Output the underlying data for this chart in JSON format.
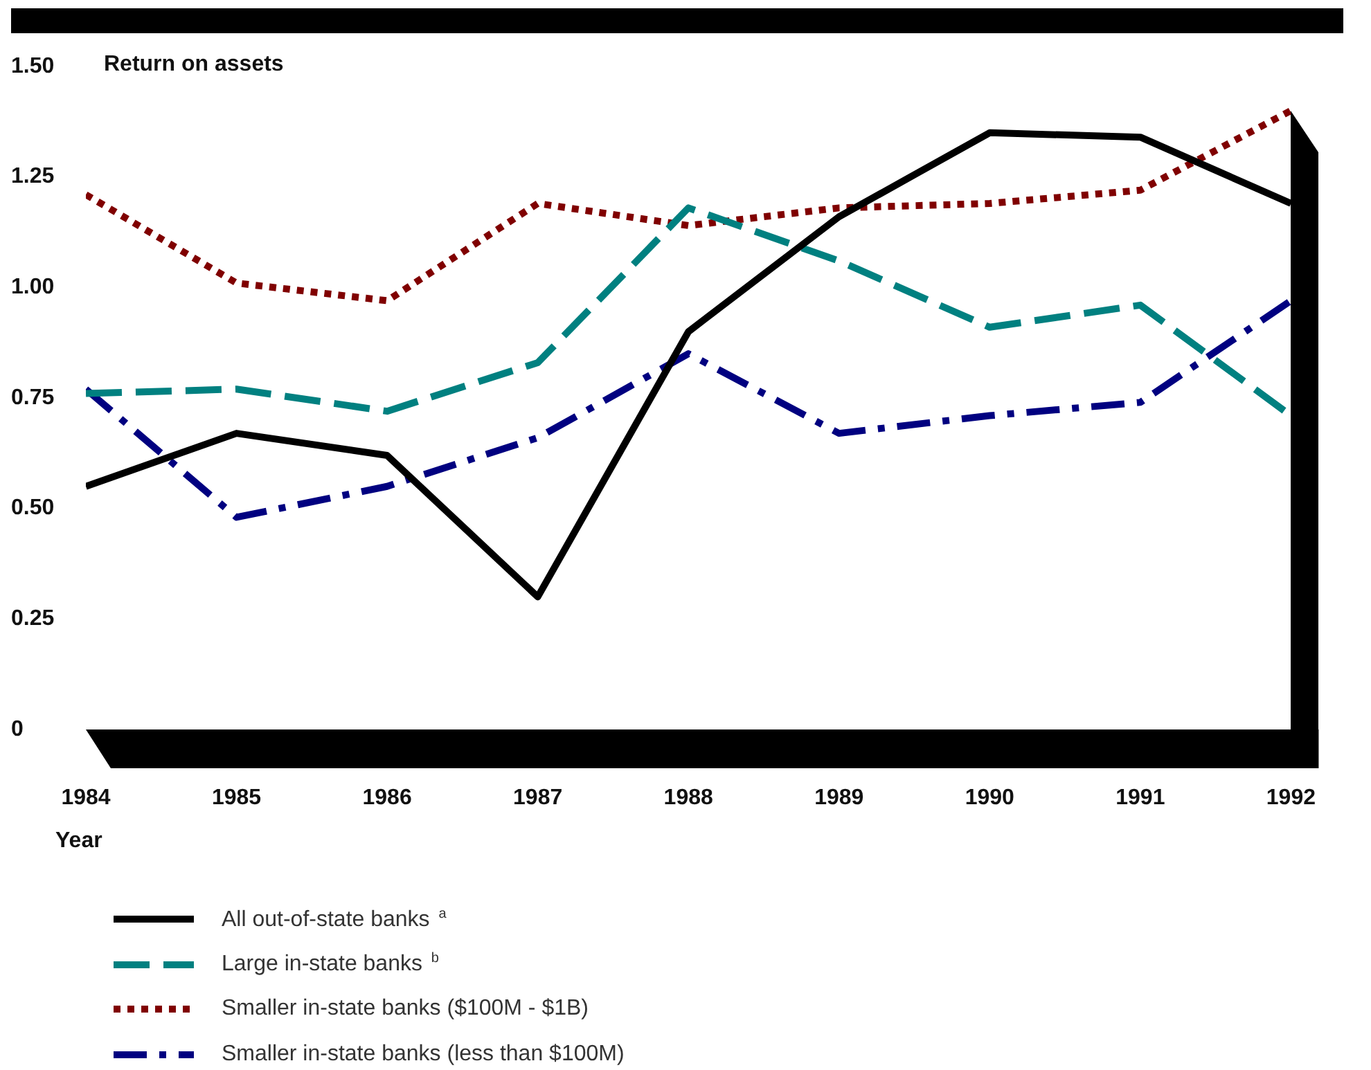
{
  "chart_data": {
    "type": "line",
    "ylabel": "Return on assets",
    "xlabel": "Year",
    "x": [
      1984,
      1985,
      1986,
      1987,
      1988,
      1989,
      1990,
      1991,
      1992
    ],
    "xlim": [
      1984,
      1992
    ],
    "xticks": [
      1984,
      1985,
      1986,
      1987,
      1988,
      1989,
      1990,
      1991,
      1992
    ],
    "ylim": [
      0,
      1.5
    ],
    "yticks": [
      0,
      0.25,
      {
        "value": 0.5,
        "label": "0.50"
      },
      0.75,
      {
        "value": 1,
        "label": "1.00"
      },
      1.25,
      {
        "value": 1.5,
        "label": "1.50"
      }
    ],
    "grid": false,
    "marker": "none",
    "legend": "bottom",
    "series": [
      {
        "name": "All out-of-state banks $^{a}$",
        "color": "#000000",
        "line_style": "solid",
        "values": [
          0.55,
          0.67,
          0.62,
          0.3,
          0.9,
          1.16,
          1.35,
          1.34,
          1.19
        ]
      },
      {
        "name": "Large in-state banks $^{b}$",
        "color": "#008080",
        "line_style": "dashed",
        "values": [
          0.76,
          0.77,
          0.72,
          0.83,
          1.18,
          1.06,
          0.91,
          0.96,
          0.71
        ]
      },
      {
        "name": "Smaller in-state banks ($100M - $1B)",
        "color": "#800000",
        "line_style": "dotted",
        "values": [
          1.21,
          1.01,
          0.97,
          1.19,
          1.14,
          1.18,
          1.19,
          1.22,
          1.4
        ]
      },
      {
        "name": "Smaller in-state banks (less than $100M)",
        "color": "#000080",
        "line_style": "dashdot",
        "values": [
          0.77,
          0.48,
          0.55,
          0.66,
          0.85,
          0.67,
          0.71,
          0.74,
          0.97
        ]
      }
    ]
  }
}
